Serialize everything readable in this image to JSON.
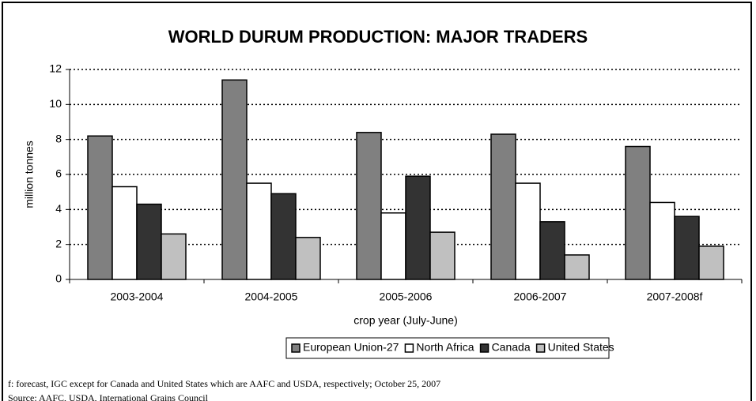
{
  "chart_data": {
    "type": "bar",
    "title": "WORLD DURUM PRODUCTION: MAJOR TRADERS",
    "y_label": "million tonnes",
    "x_label": "crop year (July-June)",
    "categories": [
      "2003-2004",
      "2004-2005",
      "2005-2006",
      "2006-2007",
      "2007-2008f"
    ],
    "series": [
      {
        "name": "European Union-27",
        "color": "#808080",
        "values": [
          8.2,
          11.4,
          8.4,
          8.3,
          7.6
        ]
      },
      {
        "name": "North Africa",
        "color": "#ffffff",
        "values": [
          5.3,
          5.5,
          3.8,
          5.5,
          4.4
        ]
      },
      {
        "name": "Canada",
        "color": "#333333",
        "values": [
          4.3,
          4.9,
          5.9,
          3.3,
          3.6
        ]
      },
      {
        "name": "United States",
        "color": "#c0c0c0",
        "values": [
          2.6,
          2.4,
          2.7,
          1.4,
          1.9
        ]
      }
    ],
    "ylim": [
      0,
      12
    ],
    "yticks": [
      0,
      2,
      4,
      6,
      8,
      10,
      12
    ],
    "grid": true,
    "legend": "bottom",
    "notes": [
      "f: forecast, IGC except for Canada and United States which are AAFC and USDA, respectively; October 25, 2007",
      "Source: AAFC, USDA, International Grains Council"
    ]
  }
}
